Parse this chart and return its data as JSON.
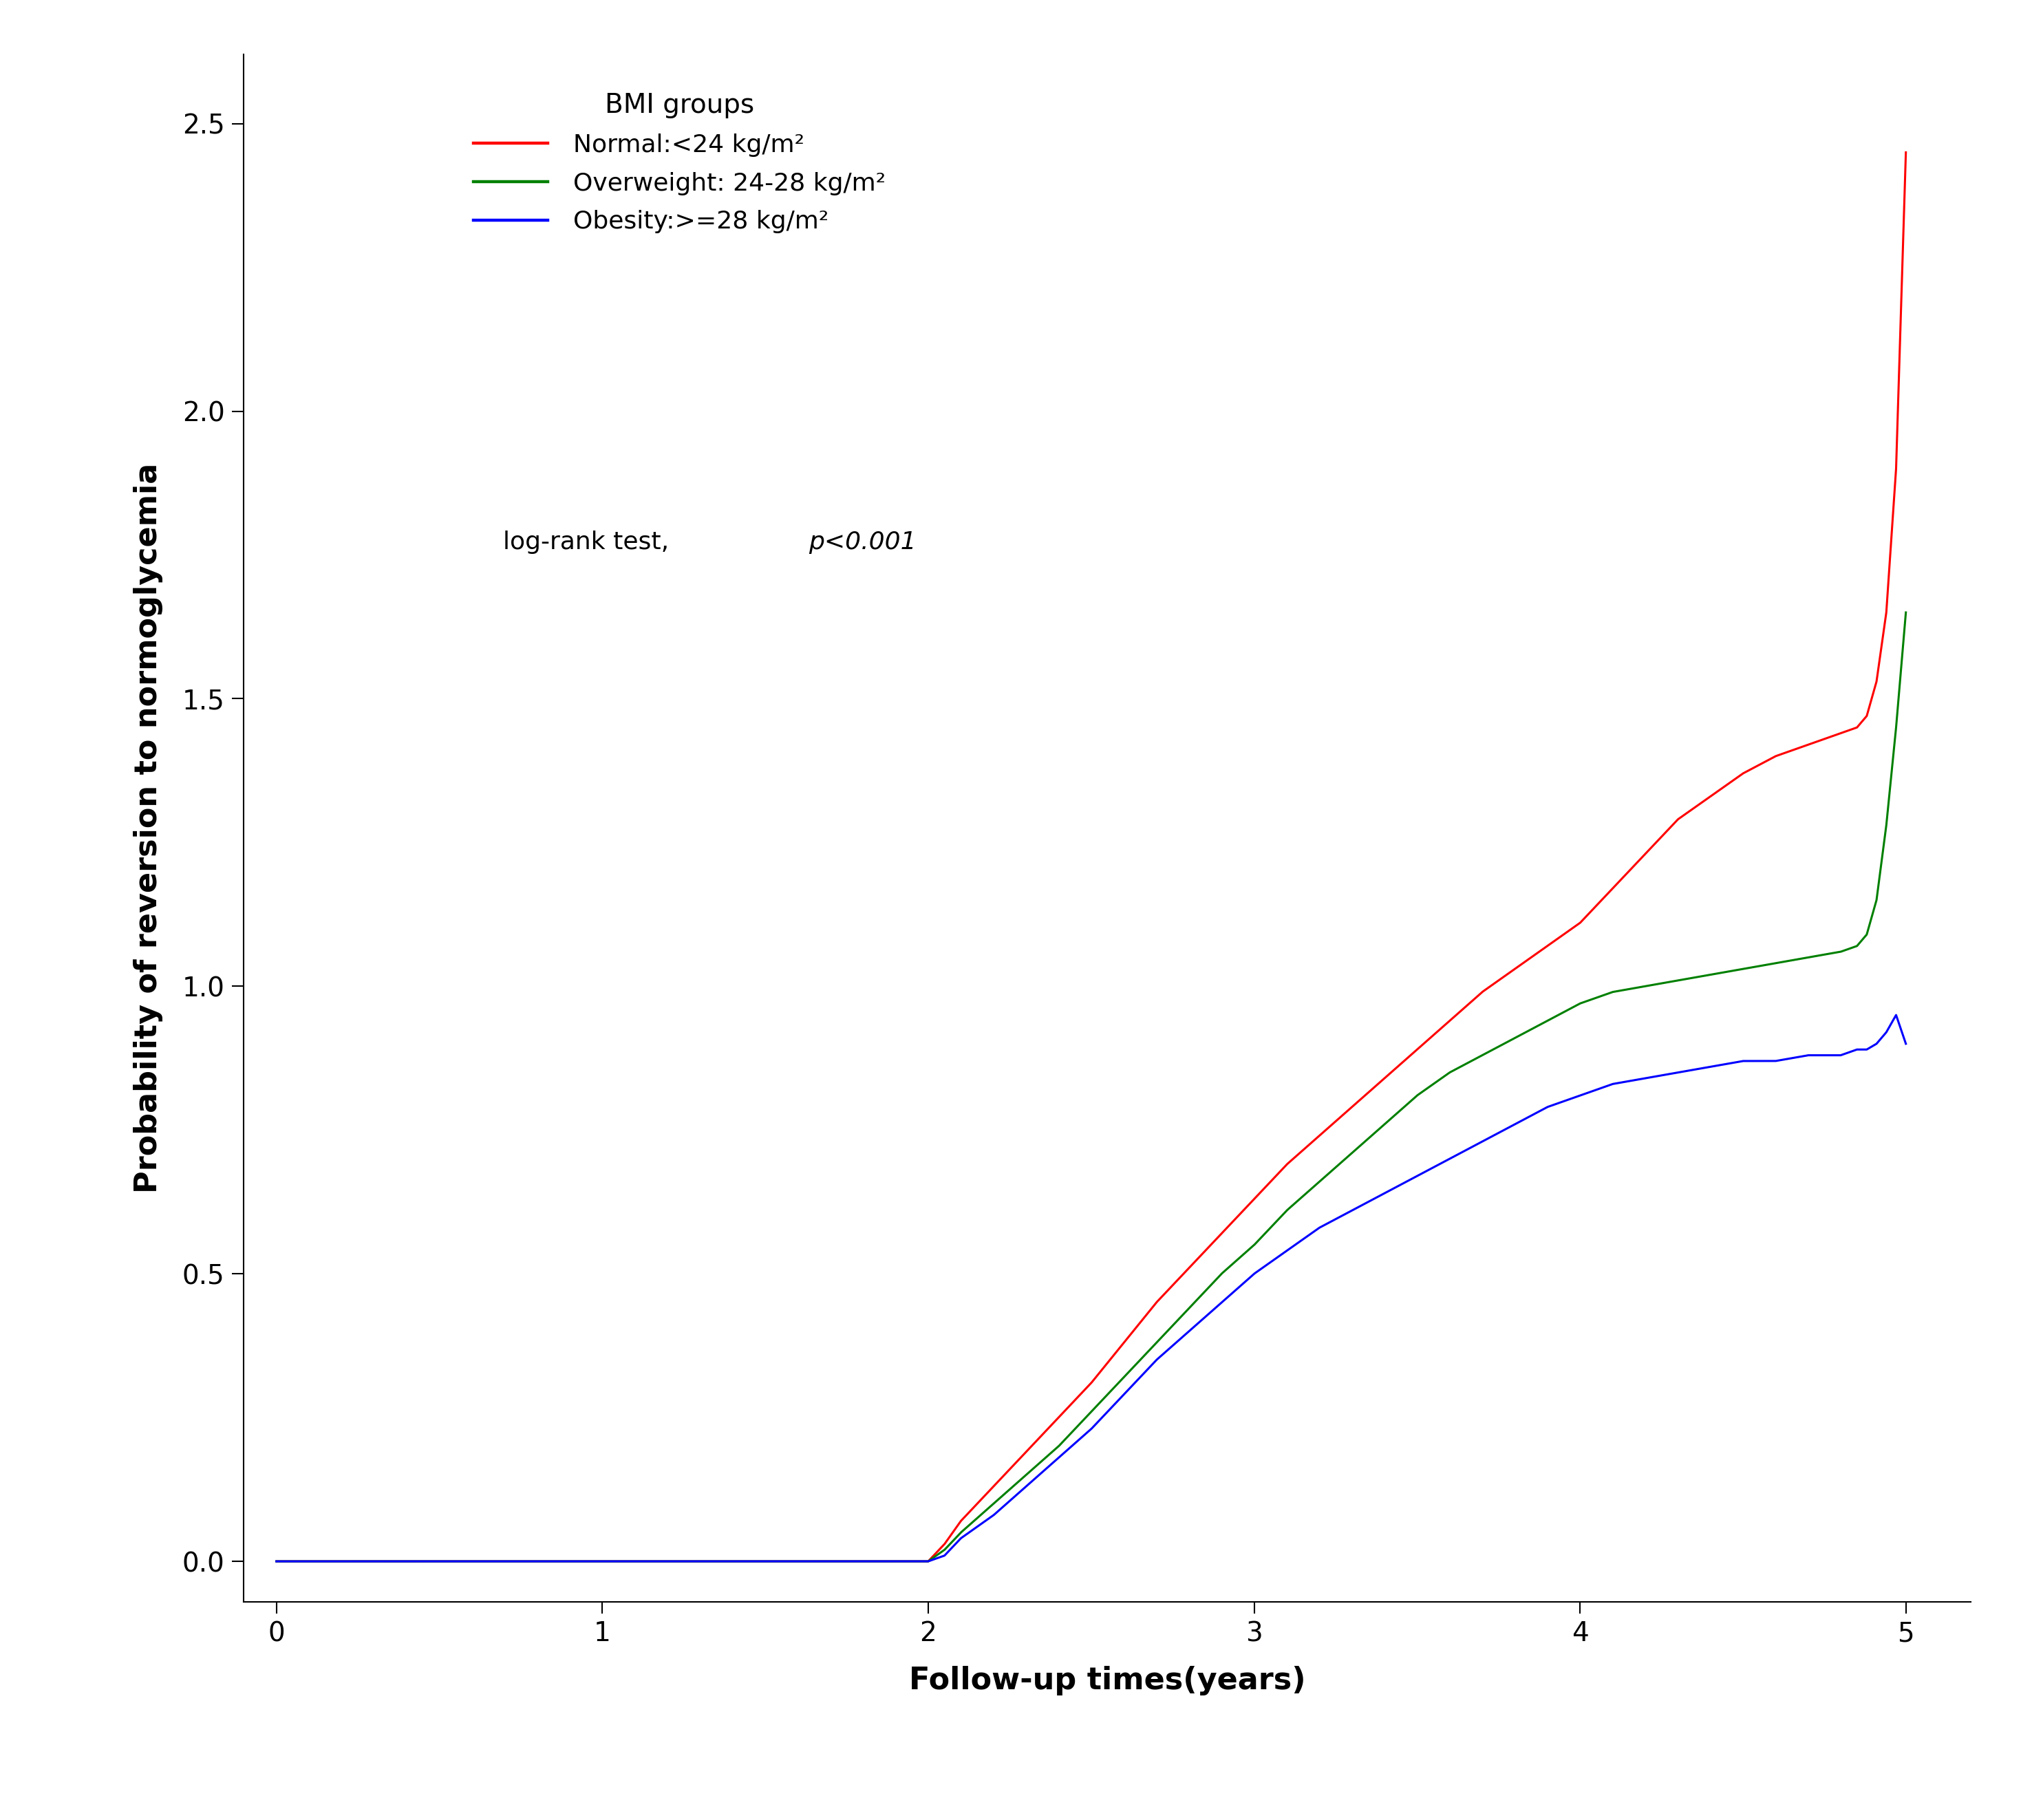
{
  "xlabel": "Follow-up times(years)",
  "ylabel": "Probability of reversion to normoglycemia",
  "xlim": [
    -0.1,
    5.2
  ],
  "ylim": [
    -0.07,
    2.62
  ],
  "yticks": [
    0.0,
    0.5,
    1.0,
    1.5,
    2.0,
    2.5
  ],
  "xticks": [
    0,
    1,
    2,
    3,
    4,
    5
  ],
  "legend_title": "BMI groups",
  "legend_labels": [
    "Normal:<24 kg/m²",
    "Overweight: 24-28 kg/m²",
    "Obesity:>=28 kg/m²"
  ],
  "legend_colors": [
    "#ff0000",
    "#008000",
    "#0000ff"
  ],
  "annotation_prefix": "log-rank test, ",
  "annotation_italic": "p<0.001",
  "bg_color": "#ffffff",
  "line_width": 2.2,
  "font_size_axis_label": 32,
  "font_size_tick_label": 28,
  "font_size_legend_title": 28,
  "font_size_legend": 26,
  "font_size_annotation": 26,
  "red_t": [
    0,
    1.999,
    2.0,
    2.05,
    2.1,
    2.2,
    2.3,
    2.4,
    2.5,
    2.6,
    2.7,
    2.8,
    2.9,
    3.0,
    3.1,
    3.2,
    3.3,
    3.4,
    3.5,
    3.6,
    3.7,
    3.8,
    3.9,
    4.0,
    4.1,
    4.2,
    4.3,
    4.4,
    4.5,
    4.6,
    4.7,
    4.8,
    4.85,
    4.88,
    4.91,
    4.94,
    4.97,
    5.0
  ],
  "red_v": [
    0,
    0,
    0,
    0.03,
    0.07,
    0.13,
    0.19,
    0.25,
    0.31,
    0.38,
    0.45,
    0.51,
    0.57,
    0.63,
    0.69,
    0.74,
    0.79,
    0.84,
    0.89,
    0.94,
    0.99,
    1.03,
    1.07,
    1.11,
    1.17,
    1.23,
    1.29,
    1.33,
    1.37,
    1.4,
    1.42,
    1.44,
    1.45,
    1.47,
    1.53,
    1.65,
    1.9,
    2.45
  ],
  "green_t": [
    0,
    1.999,
    2.0,
    2.05,
    2.1,
    2.2,
    2.3,
    2.4,
    2.5,
    2.6,
    2.7,
    2.8,
    2.9,
    3.0,
    3.1,
    3.2,
    3.3,
    3.4,
    3.5,
    3.6,
    3.7,
    3.8,
    3.9,
    4.0,
    4.1,
    4.2,
    4.3,
    4.4,
    4.5,
    4.6,
    4.7,
    4.8,
    4.85,
    4.88,
    4.91,
    4.94,
    4.97,
    5.0
  ],
  "green_v": [
    0,
    0,
    0,
    0.02,
    0.05,
    0.1,
    0.15,
    0.2,
    0.26,
    0.32,
    0.38,
    0.44,
    0.5,
    0.55,
    0.61,
    0.66,
    0.71,
    0.76,
    0.81,
    0.85,
    0.88,
    0.91,
    0.94,
    0.97,
    0.99,
    1.0,
    1.01,
    1.02,
    1.03,
    1.04,
    1.05,
    1.06,
    1.07,
    1.09,
    1.15,
    1.28,
    1.45,
    1.65
  ],
  "blue_t": [
    0,
    1.999,
    2.0,
    2.05,
    2.1,
    2.2,
    2.3,
    2.4,
    2.5,
    2.6,
    2.7,
    2.8,
    2.9,
    3.0,
    3.1,
    3.2,
    3.3,
    3.4,
    3.5,
    3.6,
    3.7,
    3.8,
    3.9,
    4.0,
    4.1,
    4.2,
    4.3,
    4.4,
    4.5,
    4.6,
    4.7,
    4.8,
    4.85,
    4.88,
    4.91,
    4.94,
    4.97,
    5.0
  ],
  "blue_v": [
    0,
    0,
    0,
    0.01,
    0.04,
    0.08,
    0.13,
    0.18,
    0.23,
    0.29,
    0.35,
    0.4,
    0.45,
    0.5,
    0.54,
    0.58,
    0.61,
    0.64,
    0.67,
    0.7,
    0.73,
    0.76,
    0.79,
    0.81,
    0.83,
    0.84,
    0.85,
    0.86,
    0.87,
    0.87,
    0.88,
    0.88,
    0.89,
    0.89,
    0.9,
    0.92,
    0.95,
    0.9
  ]
}
